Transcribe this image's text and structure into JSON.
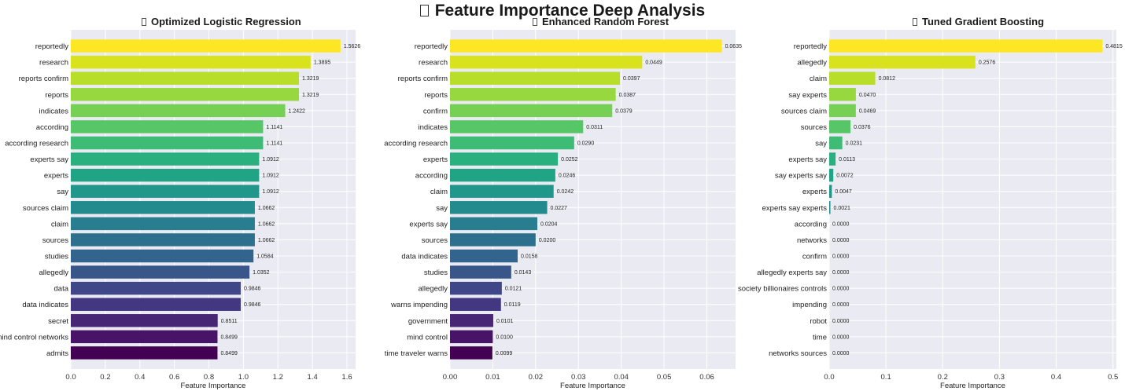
{
  "title": "Feature Importance Deep Analysis",
  "colors": {
    "plot_background": "#eaeaf2",
    "grid": "#ffffff",
    "palette": "viridis-reversed"
  },
  "chart_data": [
    {
      "type": "bar",
      "orientation": "horizontal",
      "title": "Optimized Logistic Regression",
      "xlabel": "Feature Importance",
      "xlim": [
        0,
        1.65
      ],
      "xticks": [
        0.0,
        0.2,
        0.4,
        0.6,
        0.8,
        1.0,
        1.2,
        1.4,
        1.6
      ],
      "xtick_labels": [
        "0.0",
        "0.2",
        "0.4",
        "0.6",
        "0.8",
        "1.0",
        "1.2",
        "1.4",
        "1.6"
      ],
      "grid": true,
      "categories": [
        "reportedly",
        "research",
        "reports confirm",
        "reports",
        "indicates",
        "according",
        "according research",
        "experts say",
        "experts",
        "say",
        "sources claim",
        "claim",
        "sources",
        "studies",
        "allegedly",
        "data",
        "data indicates",
        "secret",
        "mind control networks",
        "admits"
      ],
      "values": [
        1.5626,
        1.3895,
        1.3219,
        1.3219,
        1.2422,
        1.1141,
        1.1141,
        1.0912,
        1.0912,
        1.0912,
        1.0662,
        1.0662,
        1.0662,
        1.0584,
        1.0352,
        0.9846,
        0.9846,
        0.8511,
        0.8499,
        0.8499
      ],
      "value_labels": [
        "1.5626",
        "1.3895",
        "1.3219",
        "1.3219",
        "1.2422",
        "1.1141",
        "1.1141",
        "1.0912",
        "1.0912",
        "1.0912",
        "1.0662",
        "1.0662",
        "1.0662",
        "1.0584",
        "1.0352",
        "0.9846",
        "0.9846",
        "0.8511",
        "0.8499",
        "0.8499"
      ]
    },
    {
      "type": "bar",
      "orientation": "horizontal",
      "title": "Enhanced Random Forest",
      "xlabel": "Feature Importance",
      "xlim": [
        0,
        0.0667
      ],
      "xticks": [
        0.0,
        0.01,
        0.02,
        0.03,
        0.04,
        0.05,
        0.06
      ],
      "xtick_labels": [
        "0.00",
        "0.01",
        "0.02",
        "0.03",
        "0.04",
        "0.05",
        "0.06"
      ],
      "grid": true,
      "categories": [
        "reportedly",
        "research",
        "reports confirm",
        "reports",
        "confirm",
        "indicates",
        "according research",
        "experts",
        "according",
        "claim",
        "say",
        "experts say",
        "sources",
        "data indicates",
        "studies",
        "allegedly",
        "warns impending",
        "government",
        "mind control",
        "time traveler warns"
      ],
      "values": [
        0.0635,
        0.0449,
        0.0397,
        0.0387,
        0.0379,
        0.0311,
        0.029,
        0.0252,
        0.0246,
        0.0242,
        0.0227,
        0.0204,
        0.02,
        0.0158,
        0.0143,
        0.0121,
        0.0119,
        0.0101,
        0.01,
        0.0099
      ],
      "value_labels": [
        "0.0635",
        "0.0449",
        "0.0397",
        "0.0387",
        "0.0379",
        "0.0311",
        "0.0290",
        "0.0252",
        "0.0246",
        "0.0242",
        "0.0227",
        "0.0204",
        "0.0200",
        "0.0158",
        "0.0143",
        "0.0121",
        "0.0119",
        "0.0101",
        "0.0100",
        "0.0099"
      ]
    },
    {
      "type": "bar",
      "orientation": "horizontal",
      "title": "Tuned Gradient Boosting",
      "xlabel": "Feature Importance",
      "xlim": [
        0,
        0.506
      ],
      "xticks": [
        0.0,
        0.1,
        0.2,
        0.3,
        0.4,
        0.5
      ],
      "xtick_labels": [
        "0.0",
        "0.1",
        "0.2",
        "0.3",
        "0.4",
        "0.5"
      ],
      "grid": true,
      "categories": [
        "reportedly",
        "allegedly",
        "claim",
        "say experts",
        "sources claim",
        "sources",
        "say",
        "experts say",
        "say experts say",
        "experts",
        "experts say experts",
        "according",
        "networks",
        "confirm",
        "allegedly experts say",
        "society billionaires controls",
        "impending",
        "robot",
        "time",
        "networks sources"
      ],
      "values": [
        0.4815,
        0.2576,
        0.0812,
        0.047,
        0.0469,
        0.0376,
        0.0231,
        0.0113,
        0.0072,
        0.0047,
        0.0021,
        0.0,
        0.0,
        0.0,
        0.0,
        0.0,
        0.0,
        0.0,
        0.0,
        0.0
      ],
      "value_labels": [
        "0.4815",
        "0.2576",
        "0.0812",
        "0.0470",
        "0.0469",
        "0.0376",
        "0.0231",
        "0.0113",
        "0.0072",
        "0.0047",
        "0.0021",
        "0.0000",
        "0.0000",
        "0.0000",
        "0.0000",
        "0.0000",
        "0.0000",
        "0.0000",
        "0.0000",
        "0.0000"
      ]
    }
  ]
}
